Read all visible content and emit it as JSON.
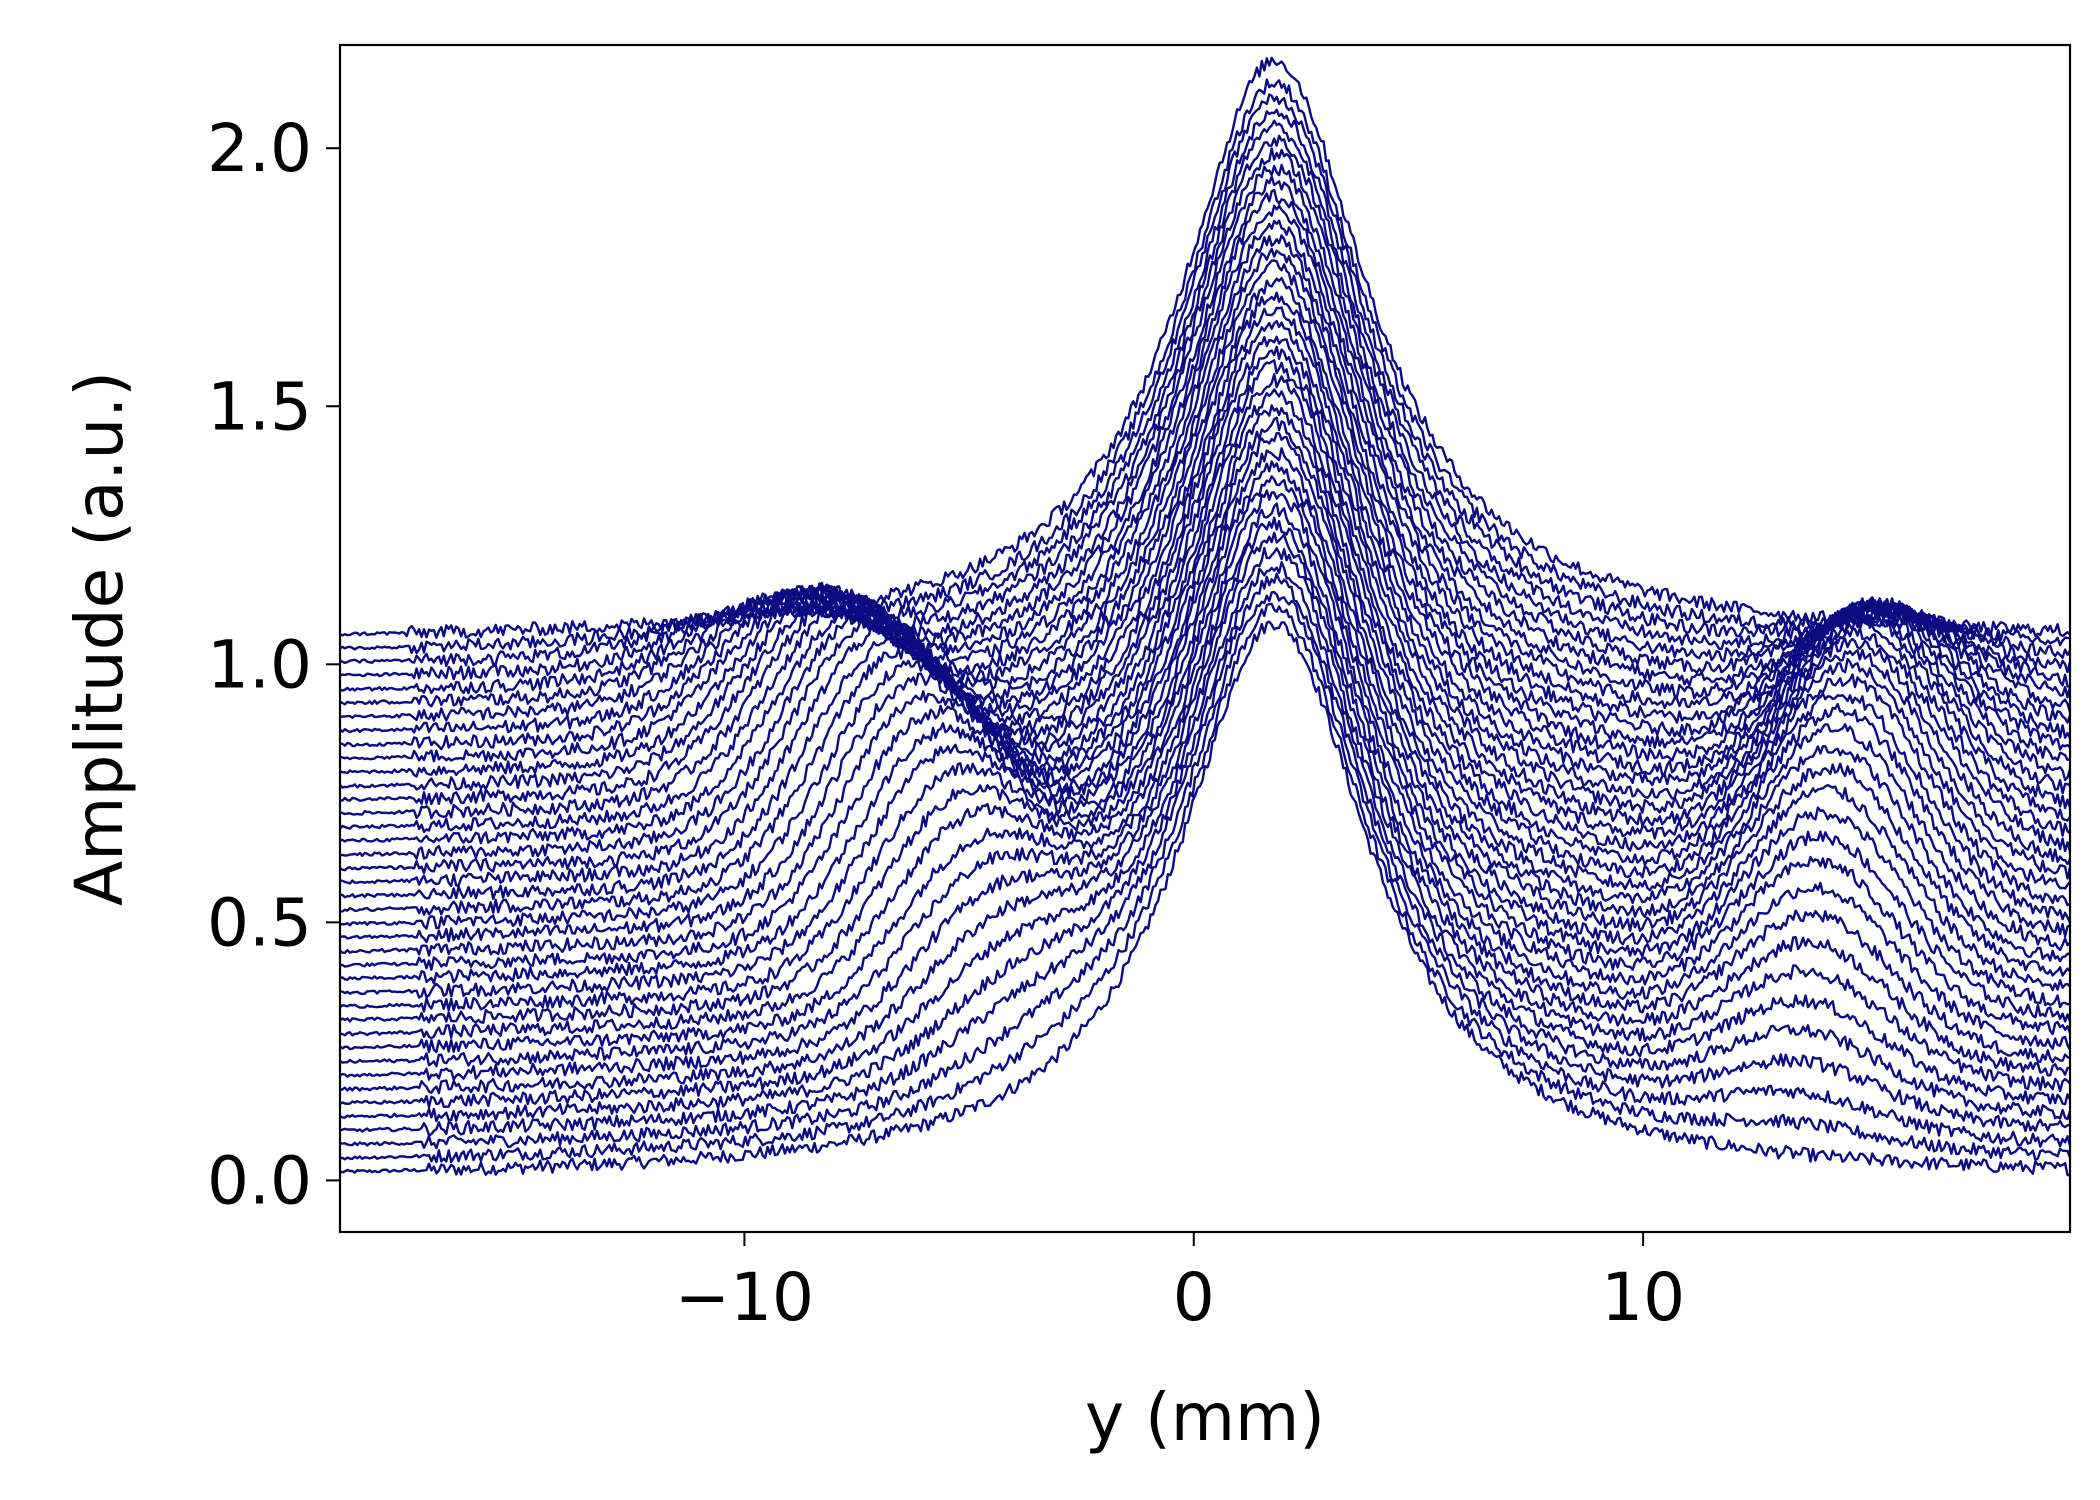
{
  "colors": {
    "line": "#0b0b82",
    "axis": "#000000",
    "background": "#ffffff"
  },
  "chart_data": {
    "type": "line",
    "title": "",
    "xlabel": "y (mm)",
    "ylabel": "Amplitude (a.u.)",
    "xlim": [
      -19,
      19.5
    ],
    "ylim": [
      -0.1,
      2.2
    ],
    "xticks": [
      -10,
      0,
      10
    ],
    "xtick_labels": [
      "−10",
      "0",
      "10"
    ],
    "yticks": [
      0.0,
      0.5,
      1.0,
      1.5,
      2.0
    ],
    "ytick_labels": [
      "0.0",
      "0.5",
      "1.0",
      "1.5",
      "2.0"
    ],
    "grid": false,
    "legend": "none",
    "series_count": 40,
    "baseline_step": 0.0267,
    "peak_center_x": 1.8,
    "central_peak_width": 2.6,
    "side_lobe_max": 0.42,
    "side_lobe_start_x": [
      5.0,
      11.5
    ],
    "side_lobe_width": 2.5,
    "noise_amplitude": 0.008,
    "samples_per_series": 701,
    "series": [
      {
        "offset": 0.0,
        "peak": 1.08
      },
      {
        "offset": 0.027,
        "peak": 1.107
      },
      {
        "offset": 0.053,
        "peak": 1.137
      },
      {
        "offset": 0.08,
        "peak": 1.163
      },
      {
        "offset": 0.107,
        "peak": 1.19
      },
      {
        "offset": 0.133,
        "peak": 1.22
      },
      {
        "offset": 0.16,
        "peak": 1.247
      },
      {
        "offset": 0.187,
        "peak": 1.273
      },
      {
        "offset": 0.213,
        "peak": 1.3
      },
      {
        "offset": 0.24,
        "peak": 1.33
      },
      {
        "offset": 0.267,
        "peak": 1.357
      },
      {
        "offset": 0.294,
        "peak": 1.383
      },
      {
        "offset": 0.32,
        "peak": 1.41
      },
      {
        "offset": 0.347,
        "peak": 1.44
      },
      {
        "offset": 0.374,
        "peak": 1.467
      },
      {
        "offset": 0.4,
        "peak": 1.493
      },
      {
        "offset": 0.427,
        "peak": 1.52
      },
      {
        "offset": 0.454,
        "peak": 1.55
      },
      {
        "offset": 0.48,
        "peak": 1.577
      },
      {
        "offset": 0.507,
        "peak": 1.603
      },
      {
        "offset": 0.534,
        "peak": 1.63
      },
      {
        "offset": 0.561,
        "peak": 1.66
      },
      {
        "offset": 0.587,
        "peak": 1.687
      },
      {
        "offset": 0.614,
        "peak": 1.713
      },
      {
        "offset": 0.641,
        "peak": 1.74
      },
      {
        "offset": 0.667,
        "peak": 1.77
      },
      {
        "offset": 0.694,
        "peak": 1.797
      },
      {
        "offset": 0.721,
        "peak": 1.823
      },
      {
        "offset": 0.747,
        "peak": 1.85
      },
      {
        "offset": 0.774,
        "peak": 1.88
      },
      {
        "offset": 0.801,
        "peak": 1.907
      },
      {
        "offset": 0.827,
        "peak": 1.933
      },
      {
        "offset": 0.854,
        "peak": 1.96
      },
      {
        "offset": 0.881,
        "peak": 1.99
      },
      {
        "offset": 0.908,
        "peak": 2.017
      },
      {
        "offset": 0.934,
        "peak": 2.043
      },
      {
        "offset": 0.961,
        "peak": 2.07
      },
      {
        "offset": 0.988,
        "peak": 2.1
      },
      {
        "offset": 1.014,
        "peak": 2.127
      },
      {
        "offset": 1.041,
        "peak": 2.17
      }
    ]
  }
}
